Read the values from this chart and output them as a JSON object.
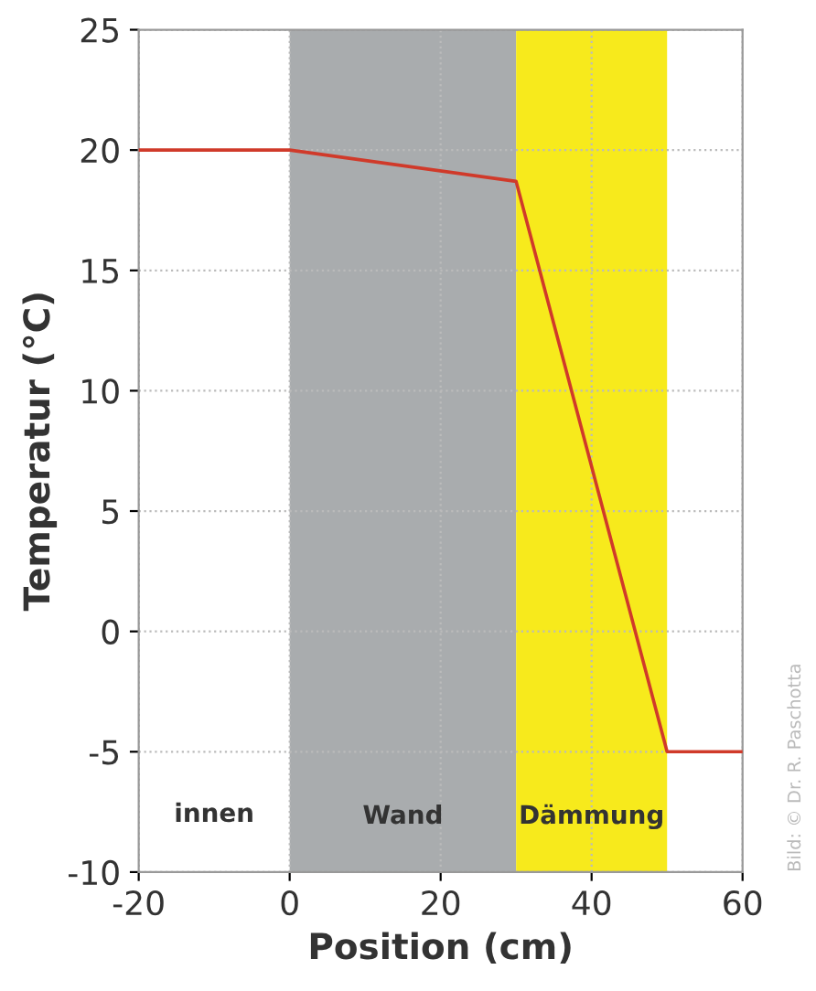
{
  "chart_data": {
    "type": "line",
    "xlabel": "Position (cm)",
    "ylabel": "Temperatur (°C)",
    "x": [
      -20,
      0,
      30,
      50,
      60
    ],
    "series": [
      {
        "color": "#d03a2a",
        "values": [
          20,
          20,
          18.7,
          -5,
          -5
        ]
      }
    ],
    "xlim": [
      -20,
      60
    ],
    "ylim": [
      -10,
      25
    ],
    "xticks": [
      -20,
      0,
      20,
      40,
      60
    ],
    "yticks": [
      -10,
      -5,
      0,
      5,
      10,
      15,
      20,
      25
    ],
    "grid": true,
    "line_style": "solid",
    "marker": "none",
    "bands": [
      {
        "axis": "x",
        "from": 0,
        "to": 30,
        "label": "Wand",
        "color": "#a9acae"
      },
      {
        "axis": "x",
        "from": 30,
        "to": 50,
        "label": "Dämmung",
        "color": "#f7ea1c"
      }
    ],
    "annotations": [
      "innen",
      "Bild: © Dr. R. Paschotta"
    ]
  }
}
